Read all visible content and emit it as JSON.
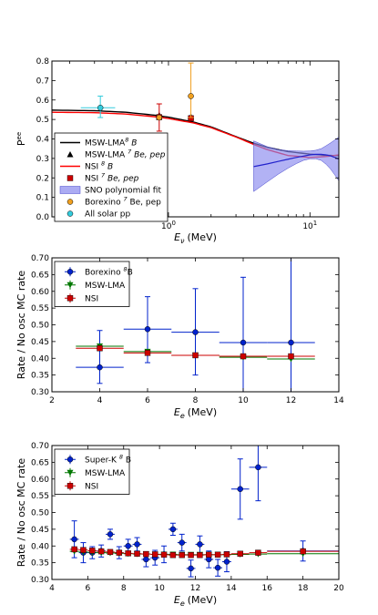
{
  "chart_data": [
    {
      "type": "scatter",
      "xscale": "log",
      "xlabel": "E_ν (MeV)",
      "xlabel_main": "E",
      "xlabel_sub": "ν",
      "xlabel_unit": "(MeV)",
      "ylabel": "Pee",
      "ylabel_main": "P",
      "ylabel_sup": "ee",
      "xlim": [
        0.15,
        16
      ],
      "ylim": [
        0,
        0.8
      ],
      "yticks": [
        "0.0",
        "0.1",
        "0.2",
        "0.3",
        "0.4",
        "0.5",
        "0.6",
        "0.7",
        "0.8"
      ],
      "xticks": [
        "10⁰",
        "10¹"
      ],
      "xtick_base": "10",
      "xtick_exp": [
        "0",
        "1"
      ],
      "legend_position": "lower-left",
      "legend": [
        {
          "label": "MSW-LMA ⁸ B",
          "text": "MSW-LMA",
          "sup": "8",
          "tail": " B",
          "tail_italic": true,
          "kind": "line",
          "color": "#000000"
        },
        {
          "label": "MSW-LMA ⁷ Be, pep",
          "text": "MSW-LMA ",
          "sup": "7",
          "tail": " Be, pep",
          "tail_italic": true,
          "kind": "triangle",
          "color": "#000000"
        },
        {
          "label": "NSI ⁸ B",
          "text": "NSI ",
          "sup": "8",
          "tail": " B",
          "tail_italic": true,
          "kind": "line",
          "color": "#ff0000"
        },
        {
          "label": "NSI ⁷ Be, pep",
          "text": "NSI ",
          "sup": "7",
          "tail": " Be, pep",
          "tail_italic": true,
          "kind": "square",
          "color": "#cc0000"
        },
        {
          "label": "SNO polynomial fit",
          "text": "SNO polynomial fit",
          "sup": "",
          "tail": "",
          "tail_italic": false,
          "kind": "band",
          "color": "#8888ee"
        },
        {
          "label": "Borexino ⁷ Be, pep",
          "text": "Borexino ",
          "sup": "7",
          "tail": " Be, pep",
          "tail_italic": false,
          "kind": "circle",
          "color": "#f0a020"
        },
        {
          "label": "All solar pp",
          "text": "All solar pp",
          "sup": "",
          "tail": "",
          "tail_italic": false,
          "kind": "circle",
          "color": "#33ccdd"
        }
      ],
      "series": [
        {
          "name": "MSW-LMA ⁸ B",
          "kind": "line",
          "color": "#000000",
          "x": [
            0.15,
            0.3,
            0.5,
            0.8,
            1.0,
            1.5,
            2.0,
            3.0,
            4.0,
            5.0,
            7.0,
            10.0,
            13.0,
            16.0
          ],
          "y": [
            0.548,
            0.545,
            0.537,
            0.522,
            0.512,
            0.487,
            0.462,
            0.412,
            0.378,
            0.357,
            0.335,
            0.322,
            0.316,
            0.314
          ]
        },
        {
          "name": "NSI ⁸ B",
          "kind": "line",
          "color": "#ff0000",
          "x": [
            0.15,
            0.3,
            0.5,
            0.8,
            1.0,
            1.5,
            2.0,
            3.0,
            4.0,
            5.0,
            7.0,
            10.0,
            13.0,
            16.0
          ],
          "y": [
            0.537,
            0.535,
            0.528,
            0.514,
            0.505,
            0.482,
            0.458,
            0.41,
            0.372,
            0.345,
            0.315,
            0.305,
            0.31,
            0.318
          ]
        },
        {
          "name": "SNO polynomial fit",
          "kind": "band",
          "color": "#8888ee",
          "x": [
            4.0,
            5.0,
            6.0,
            7.0,
            8.0,
            9.0,
            10.0,
            11.0,
            12.0,
            13.0,
            14.0,
            15.0,
            16.0
          ],
          "y": [
            0.258,
            0.272,
            0.285,
            0.296,
            0.305,
            0.312,
            0.318,
            0.321,
            0.321,
            0.318,
            0.313,
            0.305,
            0.297
          ],
          "y_low": [
            0.13,
            0.18,
            0.22,
            0.25,
            0.273,
            0.29,
            0.298,
            0.298,
            0.29,
            0.27,
            0.245,
            0.215,
            0.185
          ],
          "y_high": [
            0.39,
            0.36,
            0.345,
            0.34,
            0.338,
            0.337,
            0.338,
            0.342,
            0.35,
            0.365,
            0.38,
            0.395,
            0.41
          ]
        },
        {
          "name": "MSW-LMA ⁷ Be, pep",
          "kind": "triangle",
          "color": "#000000",
          "x": [
            0.86,
            1.44
          ],
          "y": [
            0.522,
            0.515
          ]
        },
        {
          "name": "NSI ⁷ Be, pep",
          "kind": "square",
          "color": "#cc0000",
          "x": [
            0.86,
            1.44
          ],
          "y": [
            0.512,
            0.506
          ]
        },
        {
          "name": "Borexino ⁷ Be, pep",
          "kind": "circle",
          "color": "#f0a020",
          "errcolor": "#cc0000",
          "x": [
            0.86,
            1.44
          ],
          "y": [
            0.51,
            0.62
          ],
          "yerr_low": [
            0.07,
            0.11
          ],
          "yerr_high": [
            0.07,
            0.17
          ],
          "errcolors": [
            "#cc0000",
            "#f0a020"
          ]
        },
        {
          "name": "All solar pp",
          "kind": "circle",
          "color": "#33ccdd",
          "x": [
            0.33
          ],
          "y": [
            0.56
          ],
          "xerr_low": [
            0.09
          ],
          "xerr_high": [
            0.09
          ],
          "yerr_low": [
            0.05
          ],
          "yerr_high": [
            0.06
          ]
        }
      ]
    },
    {
      "type": "scatter",
      "xlabel": "E_e (MeV)",
      "xlabel_main": "E",
      "xlabel_sub": "e",
      "xlabel_unit": "(MeV)",
      "ylabel": "Rate / No osc MC rate",
      "xlim": [
        2,
        14
      ],
      "ylim": [
        0.3,
        0.7
      ],
      "xticks": [
        2,
        4,
        6,
        8,
        10,
        12,
        14
      ],
      "yticks": [
        "0.30",
        "0.35",
        "0.40",
        "0.45",
        "0.50",
        "0.55",
        "0.60",
        "0.65",
        "0.70"
      ],
      "legend_position": "upper-left",
      "legend": [
        {
          "label": "Borexino ⁸B",
          "text": "Borexino ",
          "sup": "8",
          "tail": "B",
          "color": "#0022cc",
          "kind": "circle"
        },
        {
          "label": "MSW-LMA",
          "text": "MSW-LMA",
          "sup": "",
          "tail": "",
          "color": "#007700",
          "kind": "triangle-down"
        },
        {
          "label": "NSI",
          "text": "NSI",
          "sup": "",
          "tail": "",
          "color": "#cc0000",
          "kind": "square"
        }
      ],
      "series": [
        {
          "name": "Borexino ⁸B",
          "kind": "circle",
          "color": "#0022cc",
          "x": [
            4,
            6,
            8,
            10,
            12
          ],
          "xerr": [
            1,
            1,
            1,
            1,
            1
          ],
          "y": [
            0.373,
            0.487,
            0.478,
            0.447,
            0.447
          ],
          "yerr_low": [
            0.048,
            0.1,
            0.128,
            0.152,
            0.157
          ],
          "yerr_high": [
            0.11,
            0.097,
            0.13,
            0.195,
            0.253
          ]
        },
        {
          "name": "MSW-LMA",
          "kind": "triangle-down",
          "color": "#007700",
          "x": [
            4,
            6,
            8,
            10,
            12
          ],
          "xerr": [
            1,
            1,
            1,
            1,
            1
          ],
          "y": [
            0.436,
            0.42,
            0.409,
            0.403,
            0.398
          ]
        },
        {
          "name": "NSI",
          "kind": "square",
          "color": "#cc0000",
          "x": [
            4,
            6,
            8,
            10,
            12
          ],
          "xerr": [
            1,
            1,
            1,
            1,
            1
          ],
          "y": [
            0.43,
            0.416,
            0.409,
            0.406,
            0.406
          ]
        }
      ]
    },
    {
      "type": "scatter",
      "xlabel": "E_e (MeV)",
      "xlabel_main": "E",
      "xlabel_sub": "e",
      "xlabel_unit": "(MeV)",
      "ylabel": "Rate / No osc MC rate",
      "xlim": [
        4,
        20
      ],
      "ylim": [
        0.3,
        0.7
      ],
      "xticks": [
        4,
        6,
        8,
        10,
        12,
        14,
        16,
        18,
        20
      ],
      "yticks": [
        "0.30",
        "0.35",
        "0.40",
        "0.45",
        "0.50",
        "0.55",
        "0.60",
        "0.65",
        "0.70"
      ],
      "legend_position": "upper-left",
      "legend": [
        {
          "label": "Super-K ⁸ B",
          "text": "Super-K ",
          "sup": "8",
          "tail": " B",
          "color": "#0022cc",
          "kind": "circle"
        },
        {
          "label": "MSW-LMA",
          "text": "MSW-LMA",
          "sup": "",
          "tail": "",
          "color": "#007700",
          "kind": "triangle-down"
        },
        {
          "label": "NSI",
          "text": "NSI",
          "sup": "",
          "tail": "",
          "color": "#cc0000",
          "kind": "square"
        }
      ],
      "series": [
        {
          "name": "Super-K ⁸ B",
          "kind": "circle",
          "color": "#0022cc",
          "x": [
            5.25,
            5.75,
            6.25,
            6.75,
            7.25,
            7.75,
            8.25,
            8.75,
            9.25,
            9.75,
            10.25,
            10.75,
            11.25,
            11.75,
            12.25,
            12.75,
            13.25,
            13.75,
            14.5,
            15.5,
            18.0
          ],
          "xerr": [
            0.25,
            0.25,
            0.25,
            0.25,
            0.25,
            0.25,
            0.25,
            0.25,
            0.25,
            0.25,
            0.25,
            0.25,
            0.25,
            0.25,
            0.25,
            0.25,
            0.25,
            0.25,
            0.5,
            0.5,
            2.0
          ],
          "y": [
            0.42,
            0.38,
            0.38,
            0.385,
            0.435,
            0.38,
            0.4,
            0.405,
            0.36,
            0.365,
            0.375,
            0.45,
            0.41,
            0.333,
            0.405,
            0.36,
            0.335,
            0.353,
            0.57,
            0.635,
            0.385
          ],
          "yerr": [
            0.055,
            0.03,
            0.018,
            0.018,
            0.015,
            0.018,
            0.02,
            0.02,
            0.022,
            0.022,
            0.025,
            0.018,
            0.025,
            0.025,
            0.025,
            0.025,
            0.025,
            0.03,
            0.09,
            0.1,
            0.03
          ]
        },
        {
          "name": "MSW-LMA",
          "kind": "triangle-down",
          "color": "#007700",
          "x": [
            5.25,
            5.75,
            6.25,
            6.75,
            7.25,
            7.75,
            8.25,
            8.75,
            9.25,
            9.75,
            10.25,
            10.75,
            11.25,
            11.75,
            12.25,
            12.75,
            13.25,
            13.75,
            14.5,
            15.5,
            18.0
          ],
          "xerr": [
            0.25,
            0.25,
            0.25,
            0.25,
            0.25,
            0.25,
            0.25,
            0.25,
            0.25,
            0.25,
            0.25,
            0.25,
            0.25,
            0.25,
            0.25,
            0.25,
            0.25,
            0.25,
            0.5,
            0.5,
            2.0
          ],
          "y": [
            0.384,
            0.382,
            0.381,
            0.38,
            0.379,
            0.378,
            0.377,
            0.376,
            0.376,
            0.375,
            0.375,
            0.375,
            0.374,
            0.374,
            0.374,
            0.374,
            0.374,
            0.374,
            0.375,
            0.376,
            0.377
          ]
        },
        {
          "name": "NSI",
          "kind": "square",
          "color": "#cc0000",
          "x": [
            5.25,
            5.75,
            6.25,
            6.75,
            7.25,
            7.75,
            8.25,
            8.75,
            9.25,
            9.75,
            10.25,
            10.75,
            11.25,
            11.75,
            12.25,
            12.75,
            13.25,
            13.75,
            14.5,
            15.5,
            18.0
          ],
          "xerr": [
            0.25,
            0.25,
            0.25,
            0.25,
            0.25,
            0.25,
            0.25,
            0.25,
            0.25,
            0.25,
            0.25,
            0.25,
            0.25,
            0.25,
            0.25,
            0.25,
            0.25,
            0.25,
            0.5,
            0.5,
            2.0
          ],
          "y": [
            0.39,
            0.388,
            0.386,
            0.384,
            0.382,
            0.38,
            0.378,
            0.377,
            0.376,
            0.375,
            0.374,
            0.373,
            0.373,
            0.373,
            0.373,
            0.374,
            0.374,
            0.375,
            0.377,
            0.38,
            0.384
          ]
        }
      ]
    }
  ]
}
